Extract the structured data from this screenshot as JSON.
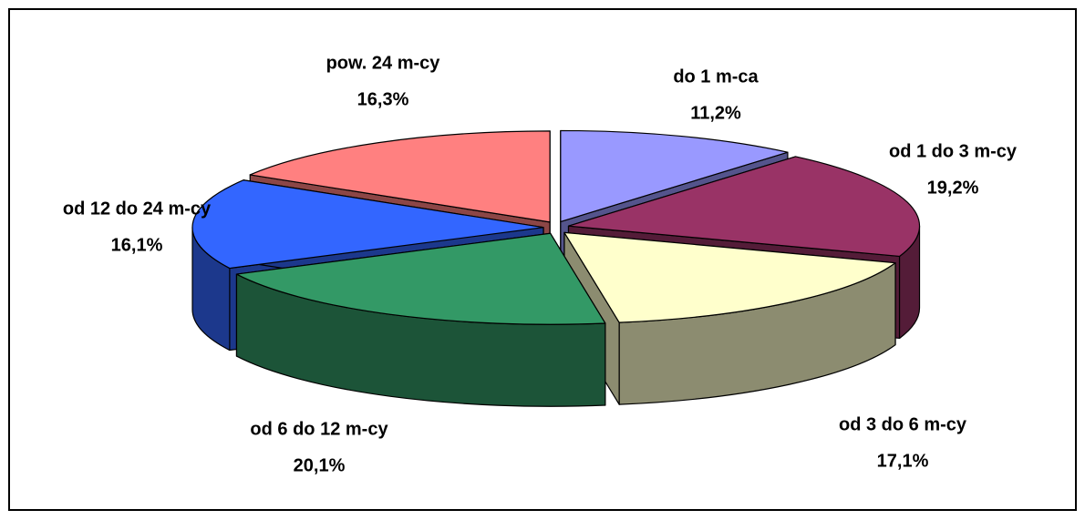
{
  "chart_data": {
    "type": "pie3d",
    "categories": [
      "do 1 m-ca",
      "od 1 do 3 m-cy",
      "od 3 do 6 m-cy",
      "od 6 do 12 m-cy",
      "od 12 do 24 m-cy",
      "pow. 24 m-cy"
    ],
    "values": [
      11.2,
      19.2,
      17.1,
      20.1,
      16.1,
      16.3
    ],
    "value_labels": [
      "11,2%",
      "19,2%",
      "17,1%",
      "20,1%",
      "16,1%",
      "16,3%"
    ],
    "colors": [
      "#9999ff",
      "#993366",
      "#ffffcc",
      "#339966",
      "#3366ff",
      "#ff8080"
    ]
  }
}
